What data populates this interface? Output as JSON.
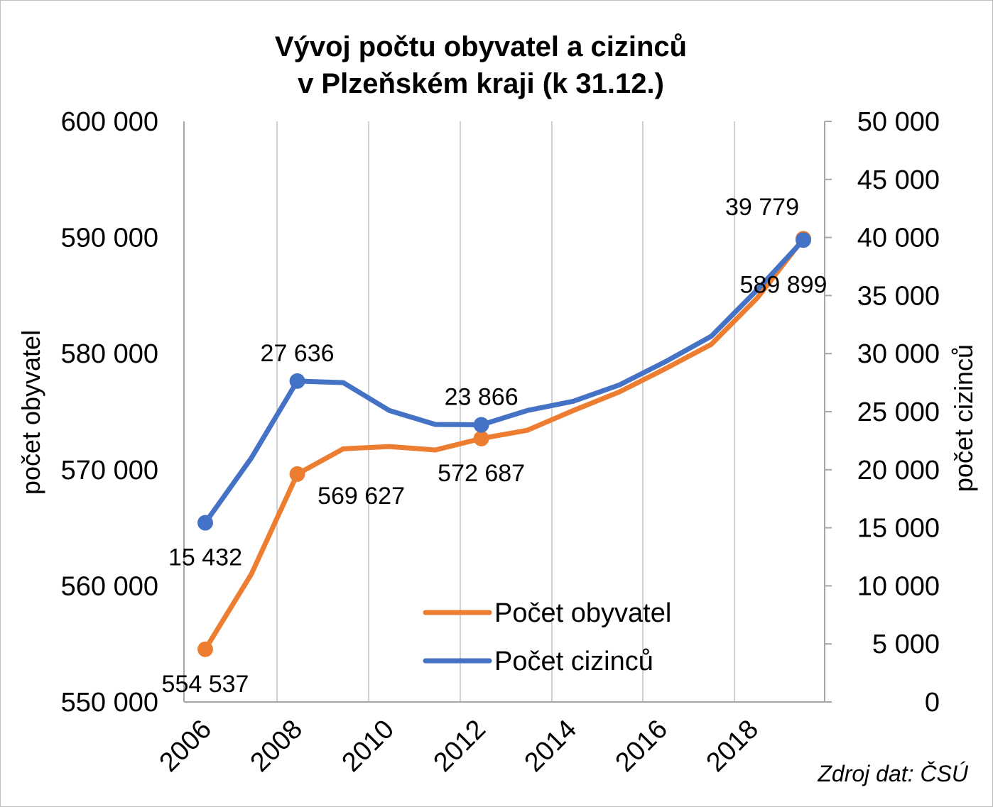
{
  "chart_data": {
    "type": "line",
    "title_lines": [
      "Vývoj počtu obyvatel a cizinců",
      "v Plzeňském kraji (k 31.12.)"
    ],
    "x": [
      2006,
      2007,
      2008,
      2009,
      2010,
      2011,
      2012,
      2013,
      2014,
      2015,
      2016,
      2017,
      2018,
      2019
    ],
    "x_tick_labels": [
      "2006",
      "2008",
      "2010",
      "2012",
      "2014",
      "2016",
      "2018"
    ],
    "y_left": {
      "label": "počet obyvatel",
      "range": [
        550000,
        600000
      ],
      "ticks": [
        550000,
        560000,
        570000,
        580000,
        590000,
        600000
      ],
      "tick_labels": [
        "550 000",
        "560 000",
        "570 000",
        "580 000",
        "590 000",
        "600 000"
      ]
    },
    "y_right": {
      "label": "počet cizinců",
      "range": [
        0,
        50000
      ],
      "ticks": [
        0,
        5000,
        10000,
        15000,
        20000,
        25000,
        30000,
        35000,
        40000,
        45000,
        50000
      ],
      "tick_labels": [
        "0",
        "5 000",
        "10 000",
        "15 000",
        "20 000",
        "25 000",
        "30 000",
        "35 000",
        "40 000",
        "45 000",
        "50 000"
      ]
    },
    "series": [
      {
        "name": "Počet obyvatel",
        "axis": "left",
        "color": "#ED7D31",
        "values": [
          554537,
          561000,
          569627,
          571800,
          572000,
          571700,
          572687,
          573400,
          575100,
          576700,
          578700,
          580800,
          584800,
          589899
        ],
        "markers": [
          {
            "index": 0,
            "label": "554 537",
            "label_pos": "below"
          },
          {
            "index": 2,
            "label": "569 627",
            "label_pos": "below-right"
          },
          {
            "index": 6,
            "label": "572 687",
            "label_pos": "below"
          },
          {
            "index": 13,
            "label": "589 899",
            "label_pos": "below-left"
          }
        ]
      },
      {
        "name": "Počet cizinců",
        "axis": "right",
        "color": "#4472C4",
        "values": [
          15432,
          21000,
          27636,
          27500,
          25100,
          23900,
          23866,
          25100,
          25900,
          27300,
          29300,
          31500,
          35500,
          39779
        ],
        "markers": [
          {
            "index": 0,
            "label": "15 432",
            "label_pos": "below"
          },
          {
            "index": 2,
            "label": "27 636",
            "label_pos": "above"
          },
          {
            "index": 6,
            "label": "23 866",
            "label_pos": "above"
          },
          {
            "index": 13,
            "label": "39 779",
            "label_pos": "above-left"
          }
        ]
      }
    ],
    "grid": {
      "vertical": true,
      "horizontal": false
    },
    "legend": {
      "placement": "bottom-center-inside"
    },
    "source_note": "Zdroj dat: ČSÚ"
  }
}
